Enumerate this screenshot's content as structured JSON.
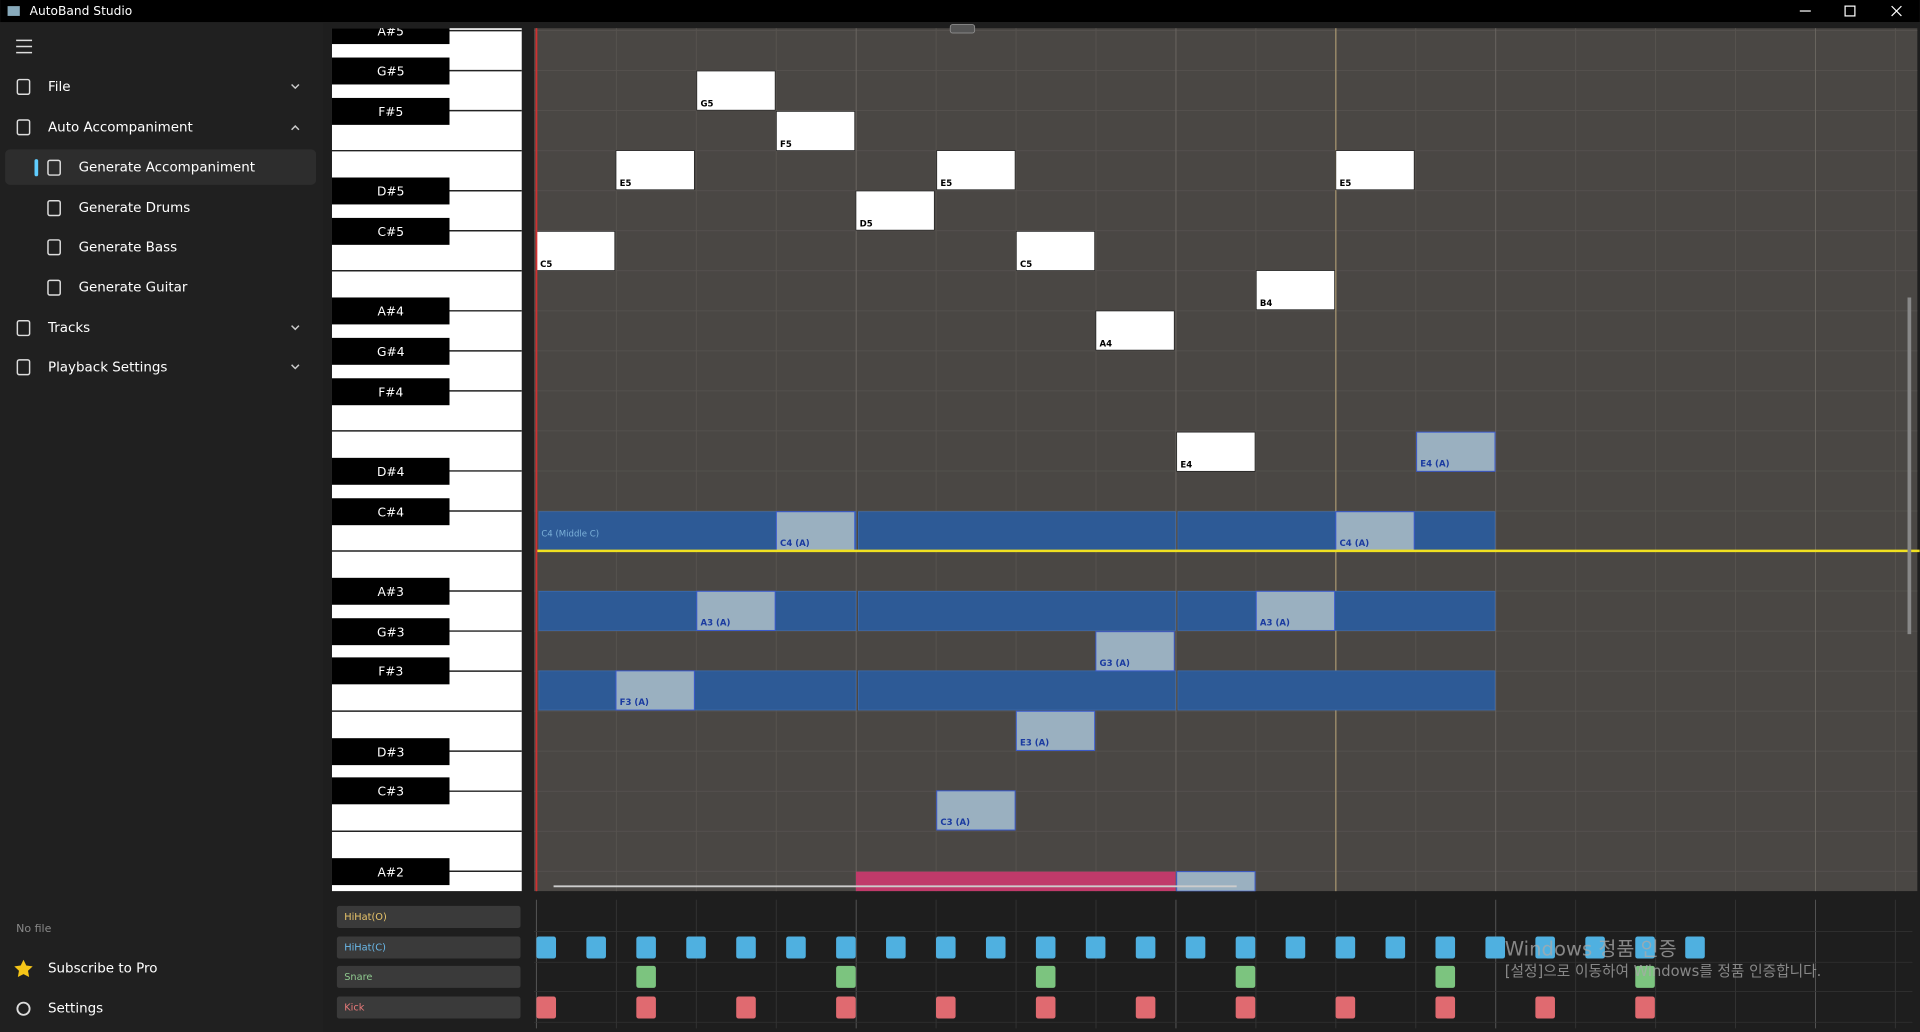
{
  "window": {
    "title": "AutoBand Studio"
  },
  "sidebar": {
    "items": [
      "File",
      "Auto Accompaniment",
      "Generate Accompaniment",
      "Generate Drums",
      "Generate Bass",
      "Generate Guitar",
      "Tracks",
      "Playback Settings"
    ],
    "status": "No file",
    "subscribe": "Subscribe to Pro",
    "settings": "Settings"
  },
  "piano": {
    "black_keys": [
      "A#5",
      "G#5",
      "F#5",
      "D#5",
      "C#5",
      "A#4",
      "G#4",
      "F#4",
      "D#4",
      "C#4",
      "A#3",
      "G#3",
      "F#3",
      "D#3",
      "C#3",
      "A#2"
    ]
  },
  "notes": {
    "middle_c": "C4 (Middle C)",
    "melody": [
      "C5",
      "E5",
      "G5",
      "F5",
      "D5",
      "E5",
      "C5",
      "A4",
      "E4",
      "B4",
      "E5"
    ],
    "accompaniment": [
      "F3 (A)",
      "A3 (A)",
      "C4 (A)",
      "C3 (A)",
      "E3 (A)",
      "G3 (A)",
      "A3 (A)",
      "C4 (A)",
      "E4 (A)"
    ]
  },
  "drums": {
    "tracks": [
      "HiHat(O)",
      "HiHat(C)",
      "Snare",
      "Kick"
    ]
  },
  "watermark": {
    "title": "Windows 정품 인증",
    "text": "[설정]으로 이동하여 Windows를 정품 인증합니다."
  }
}
